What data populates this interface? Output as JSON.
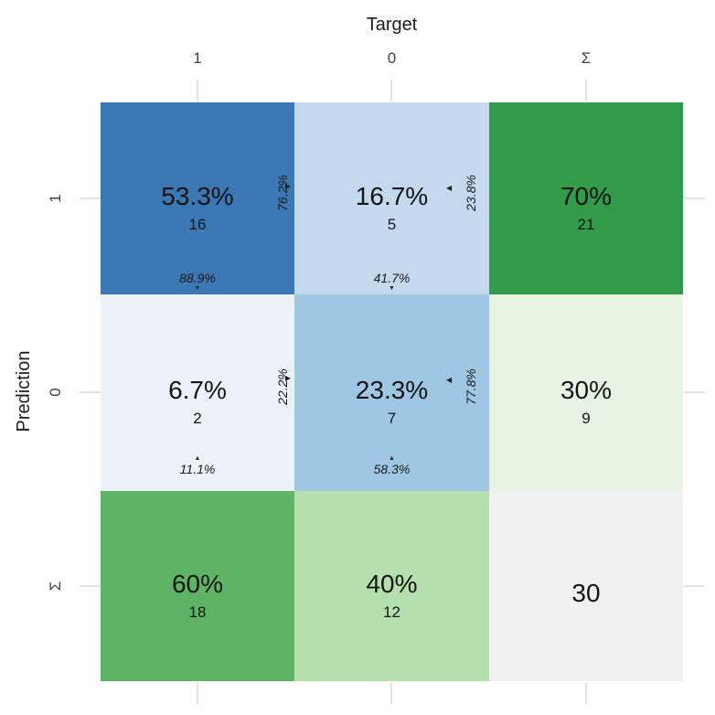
{
  "axes": {
    "x_title": "Target",
    "y_title": "Prediction",
    "col_labels": [
      "1",
      "0",
      "Σ"
    ],
    "row_labels": [
      "1",
      "0",
      "Σ"
    ]
  },
  "arrows": {
    "up": "▲",
    "down": "▼",
    "left": "◀",
    "right": "▶"
  },
  "tiles": [
    {
      "pct": "53.3%",
      "count": "16",
      "row_pct": "76.2%",
      "row_arrow": "right",
      "col_pct": "88.9%",
      "col_arrow": "down",
      "bg": "#3a77b3"
    },
    {
      "pct": "16.7%",
      "count": "5",
      "row_pct": "23.8%",
      "row_arrow": "left",
      "col_pct": "41.7%",
      "col_arrow": "down",
      "bg": "#c4d9ed"
    },
    {
      "pct": "70%",
      "count": "21",
      "bg": "#339a4a"
    },
    {
      "pct": "6.7%",
      "count": "2",
      "row_pct": "22.2%",
      "row_arrow": "right",
      "col_pct": "11.1%",
      "col_arrow": "up",
      "bg": "#edf2fa"
    },
    {
      "pct": "23.3%",
      "count": "7",
      "row_pct": "77.8%",
      "row_arrow": "left",
      "col_pct": "58.3%",
      "col_arrow": "up",
      "bg": "#9fc6e3"
    },
    {
      "pct": "30%",
      "count": "9",
      "bg": "#e7f4e3"
    },
    {
      "pct": "60%",
      "count": "18",
      "bg": "#5fb364"
    },
    {
      "pct": "40%",
      "count": "12",
      "bg": "#b6dfae"
    },
    {
      "pct": "30",
      "count": "",
      "bg": "#f1f1f1"
    }
  ],
  "chart_data": {
    "type": "heatmap",
    "title": "",
    "xlabel": "Target",
    "ylabel": "Prediction",
    "x_categories": [
      "1",
      "0",
      "Σ"
    ],
    "y_categories": [
      "1",
      "0",
      "Σ"
    ],
    "counts": [
      [
        16,
        5,
        21
      ],
      [
        2,
        7,
        9
      ],
      [
        18,
        12,
        30
      ]
    ],
    "percent_of_total": [
      [
        "53.3%",
        "16.7%",
        "70%"
      ],
      [
        "6.7%",
        "23.3%",
        "30%"
      ],
      [
        "60%",
        "40%",
        ""
      ]
    ],
    "total": 30,
    "row_percents": {
      "prediction_1": [
        "76.2%",
        "23.8%"
      ],
      "prediction_0": [
        "22.2%",
        "77.8%"
      ]
    },
    "column_percents": {
      "target_1": [
        "88.9%",
        "11.1%"
      ],
      "target_0": [
        "41.7%",
        "58.3%"
      ]
    },
    "palette_main": [
      "#3a77b3",
      "#9fc6e3",
      "#c4d9ed",
      "#edf2fa"
    ],
    "palette_sums": [
      "#339a4a",
      "#5fb364",
      "#b6dfae",
      "#e7f4e3"
    ],
    "palette_total": "#f1f1f1",
    "legend": "none",
    "grid": "off"
  }
}
